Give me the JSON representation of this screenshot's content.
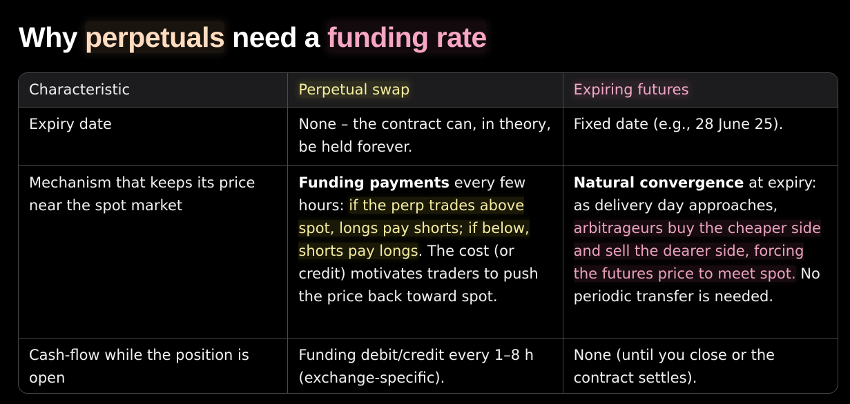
{
  "title": {
    "part1": "Why ",
    "part2": "perpetuals",
    "part3": " need a ",
    "part4": "funding rate"
  },
  "table": {
    "headers": {
      "characteristic": "Characteristic",
      "perpetual": "Perpetual swap",
      "expiring": "Expiring futures"
    },
    "rows": [
      {
        "characteristic": "Expiry date",
        "perpetual": "None – the contract can, in theory, be held forever.",
        "expiring": "Fixed date (e.g., 28 June 25)."
      },
      {
        "characteristic": "Mechanism that keeps its price near the spot market",
        "perpetual": {
          "bold": "Funding payments",
          "text1": " every few hours: ",
          "highlight": "if the perp trades above spot, longs pay shorts; if below, shorts pay longs",
          "text2": ". The cost (or credit) motivates traders to push the price back toward spot."
        },
        "expiring": {
          "bold": "Natural convergence",
          "text1": " at expiry: as delivery day approaches, ",
          "highlight": "arbitrageurs buy the cheaper side and sell the dearer side, forcing the futures price to meet spot.",
          "text2": " No periodic transfer is needed."
        }
      },
      {
        "characteristic": "Cash-flow while the position is open",
        "perpetual": "Funding debit/credit every 1–8 h (exchange-specific).",
        "expiring": "None (until you close or the contract settles)."
      }
    ]
  },
  "colors": {
    "background": "#000000",
    "header_row": "#1c1c1e",
    "border": "#4a4a4a",
    "perpetual_highlight": "#f3eba0",
    "expiring_highlight": "#f2a8c6",
    "title_peach": "#ffdcc0",
    "title_pink": "#f7a6c4"
  }
}
